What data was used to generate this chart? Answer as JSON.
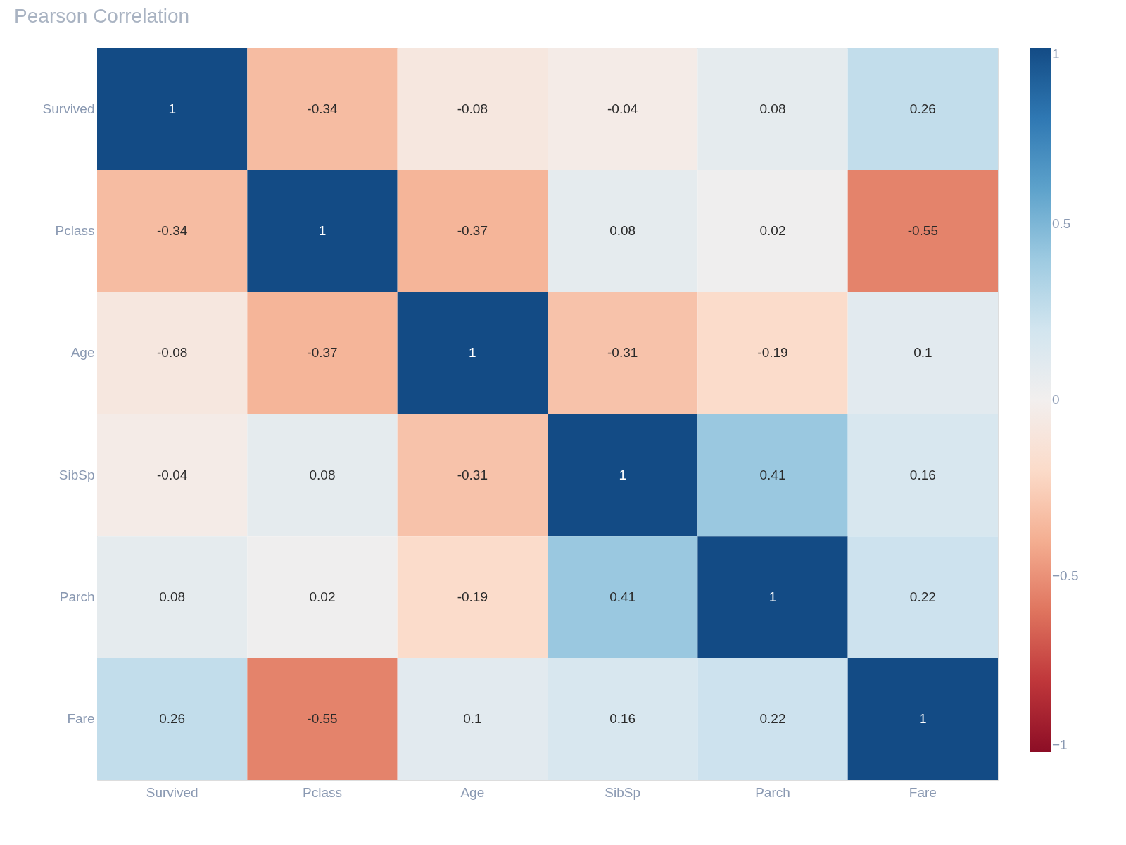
{
  "chart_data": {
    "type": "heatmap",
    "title": "Pearson Correlation",
    "categories": [
      "Survived",
      "Pclass",
      "Age",
      "SibSp",
      "Parch",
      "Fare"
    ],
    "y_categories": [
      "Survived",
      "Pclass",
      "Age",
      "SibSp",
      "Parch",
      "Fare"
    ],
    "cells": [
      [
        1,
        -0.34,
        -0.08,
        -0.04,
        0.08,
        0.26
      ],
      [
        -0.34,
        1,
        -0.37,
        0.08,
        0.02,
        -0.55
      ],
      [
        -0.08,
        -0.37,
        1,
        -0.31,
        -0.19,
        0.1
      ],
      [
        -0.04,
        0.08,
        -0.31,
        1,
        0.41,
        0.16
      ],
      [
        0.08,
        0.02,
        -0.19,
        0.41,
        1,
        0.22
      ],
      [
        0.26,
        -0.55,
        0.1,
        0.16,
        0.22,
        1
      ]
    ],
    "data_labels": true,
    "clim": [
      -1,
      1
    ],
    "cticks": [
      {
        "value": -1,
        "label": "−1"
      },
      {
        "value": -0.5,
        "label": "−0.5"
      },
      0,
      0.5,
      1
    ]
  }
}
